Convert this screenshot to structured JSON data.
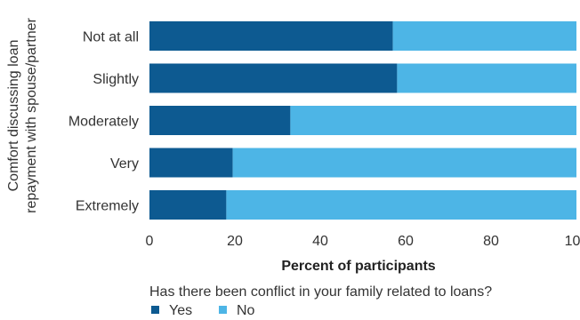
{
  "chart_data": {
    "type": "bar",
    "orientation": "horizontal",
    "stacked": true,
    "categories": [
      "Not at all",
      "Slightly",
      "Moderately",
      "Very",
      "Extremely"
    ],
    "series": [
      {
        "name": "Yes",
        "color": "#0d5a91",
        "values": [
          57,
          58,
          33,
          19.5,
          18
        ]
      },
      {
        "name": "No",
        "color": "#4db5e6",
        "values": [
          43,
          42,
          67,
          80.5,
          82
        ]
      }
    ],
    "xlabel": "Percent of participants",
    "ylabel": [
      "Comfort discussing loan",
      "repayment with spouse/partner"
    ],
    "xlim": [
      0,
      100
    ],
    "xticks": [
      0,
      20,
      40,
      60,
      80,
      100
    ],
    "grid": false,
    "legend": {
      "title": "Has there been conflict in your family related to loans?",
      "placement": "bottom-left"
    }
  }
}
